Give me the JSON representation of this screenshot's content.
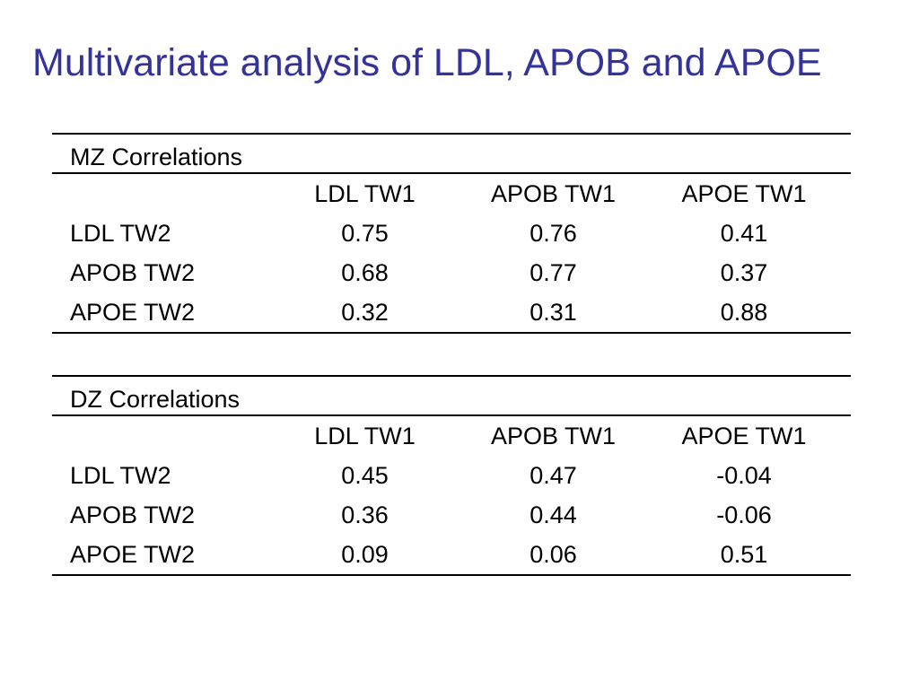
{
  "title": "Multivariate analysis of LDL, APOB and APOE",
  "mz": {
    "caption": "MZ Correlations",
    "columns": [
      "LDL TW1",
      "APOB TW1",
      "APOE TW1"
    ],
    "rows": [
      {
        "label": "LDL TW2",
        "values": [
          "0.75",
          "0.76",
          "0.41"
        ]
      },
      {
        "label": "APOB TW2",
        "values": [
          "0.68",
          "0.77",
          "0.37"
        ]
      },
      {
        "label": "APOE TW2",
        "values": [
          "0.32",
          "0.31",
          "0.88"
        ]
      }
    ]
  },
  "dz": {
    "caption": "DZ Correlations",
    "columns": [
      "LDL TW1",
      "APOB TW1",
      "APOE TW1"
    ],
    "rows": [
      {
        "label": "LDL TW2",
        "values": [
          "0.45",
          "0.47",
          "-0.04"
        ]
      },
      {
        "label": "APOB TW2",
        "values": [
          "0.36",
          "0.44",
          "-0.06"
        ]
      },
      {
        "label": "APOE TW2",
        "values": [
          "0.09",
          "0.06",
          "0.51"
        ]
      }
    ]
  },
  "colors": {
    "title": "#333399",
    "text": "#000000",
    "rule": "#000000"
  }
}
